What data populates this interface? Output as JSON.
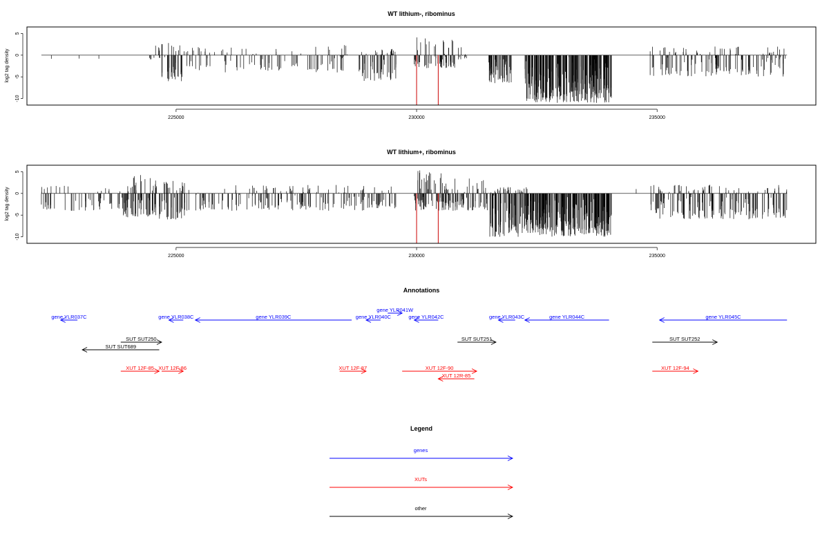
{
  "chart_data": [
    {
      "type": "bar",
      "title": "WT lithium-, ribominus",
      "ylabel": "log2 tag density",
      "xlim": [
        221900,
        238300
      ],
      "ylim": [
        -11.5,
        6.5
      ],
      "xticks": [
        225000,
        230000,
        235000
      ],
      "xtick_labels": [
        "225000",
        "230000",
        "235000"
      ],
      "yticks": [
        5,
        0,
        -5,
        -10
      ],
      "ytick_labels": [
        "5",
        "0",
        "-5",
        "-10"
      ],
      "segments": [
        {
          "from": 222200,
          "to": 223400,
          "density": 0.03,
          "min": -1,
          "max": 2.5
        },
        {
          "from": 224400,
          "to": 224700,
          "density": 0.5,
          "min": -1,
          "max": 2.8
        },
        {
          "from": 224700,
          "to": 225200,
          "density": 1.0,
          "min": -6,
          "max": 3
        },
        {
          "from": 225200,
          "to": 228500,
          "density": 0.4,
          "min": -4,
          "max": 2
        },
        {
          "from": 228400,
          "to": 228600,
          "density": 0.5,
          "min": -1,
          "max": 3
        },
        {
          "from": 228800,
          "to": 229600,
          "density": 1.0,
          "min": -6,
          "max": 1.5
        },
        {
          "from": 229950,
          "to": 230800,
          "density": 1.0,
          "min": -3,
          "max": 4.5
        },
        {
          "from": 230800,
          "to": 231200,
          "density": 0.4,
          "min": -1,
          "max": 2
        },
        {
          "from": 231500,
          "to": 232000,
          "density": 1.5,
          "min": -6.5,
          "max": 0.5
        },
        {
          "from": 232250,
          "to": 234050,
          "density": 2.0,
          "min": -11,
          "max": 0.2
        },
        {
          "from": 234850,
          "to": 237700,
          "density": 0.7,
          "min": -5,
          "max": 2
        }
      ],
      "highlight_positions": [
        230000,
        230450
      ],
      "highlight_value": -11.5,
      "highlight_color": "#cc0000"
    },
    {
      "type": "bar",
      "title": "WT lithium+, ribominus",
      "ylabel": "log2 tag density",
      "xlim": [
        221900,
        238300
      ],
      "ylim": [
        -11.5,
        6.5
      ],
      "xticks": [
        225000,
        230000,
        235000
      ],
      "xtick_labels": [
        "225000",
        "230000",
        "235000"
      ],
      "yticks": [
        5,
        0,
        -5,
        -10
      ],
      "ytick_labels": [
        "5",
        "0",
        "-5",
        "-10"
      ],
      "segments": [
        {
          "from": 222200,
          "to": 223900,
          "density": 0.5,
          "min": -4,
          "max": 2
        },
        {
          "from": 223900,
          "to": 224600,
          "density": 1.5,
          "min": -5.5,
          "max": 4.5
        },
        {
          "from": 224600,
          "to": 225200,
          "density": 1.2,
          "min": -6,
          "max": 3
        },
        {
          "from": 225200,
          "to": 229000,
          "density": 0.6,
          "min": -4,
          "max": 2
        },
        {
          "from": 229000,
          "to": 229600,
          "density": 0.7,
          "min": -3.5,
          "max": 2
        },
        {
          "from": 229950,
          "to": 230700,
          "density": 1.5,
          "min": -4,
          "max": 5.5
        },
        {
          "from": 230700,
          "to": 231500,
          "density": 1.0,
          "min": -4,
          "max": 3.5
        },
        {
          "from": 231500,
          "to": 232300,
          "density": 1.8,
          "min": -10,
          "max": 1.5
        },
        {
          "from": 232300,
          "to": 234050,
          "density": 2.0,
          "min": -10,
          "max": 0.5
        },
        {
          "from": 234200,
          "to": 234800,
          "density": 0.05,
          "min": 0,
          "max": 1.5
        },
        {
          "from": 234850,
          "to": 237700,
          "density": 0.9,
          "min": -6,
          "max": 2
        }
      ],
      "highlight_positions": [
        230000,
        230450
      ],
      "highlight_value": -11.5,
      "highlight_color": "#cc0000"
    }
  ],
  "annotations": {
    "title": "Annotations",
    "features": [
      {
        "label": "gene YLR037C",
        "type": "gene",
        "strand": "-",
        "start": 222600,
        "end": 222950,
        "row": 0
      },
      {
        "label": "gene YLR038C",
        "type": "gene",
        "strand": "-",
        "start": 224850,
        "end": 225150,
        "row": 0
      },
      {
        "label": "gene YLR039C",
        "type": "gene",
        "strand": "-",
        "start": 225400,
        "end": 228650,
        "row": 0
      },
      {
        "label": "gene YLR041W",
        "type": "gene",
        "strand": "+",
        "start": 229400,
        "end": 229700,
        "row": -1
      },
      {
        "label": "gene YLR040C",
        "type": "gene",
        "strand": "-",
        "start": 228950,
        "end": 229250,
        "row": 0
      },
      {
        "label": "gene YLR042C",
        "type": "gene",
        "strand": "-",
        "start": 229950,
        "end": 230450,
        "row": 0
      },
      {
        "label": "gene YLR043C",
        "type": "gene",
        "strand": "-",
        "start": 231700,
        "end": 232050,
        "row": 0
      },
      {
        "label": "gene YLR044C",
        "type": "gene",
        "strand": "-",
        "start": 232250,
        "end": 234000,
        "row": 0
      },
      {
        "label": "gene YLR045C",
        "type": "gene",
        "strand": "-",
        "start": 235050,
        "end": 237700,
        "row": 0
      },
      {
        "label": "SUT SUT250",
        "type": "other",
        "strand": "+",
        "start": 223850,
        "end": 224700,
        "row": 1
      },
      {
        "label": "SUT SUT689",
        "type": "other",
        "strand": "-",
        "start": 223050,
        "end": 224650,
        "row": 2
      },
      {
        "label": "SUT SUT251",
        "type": "other",
        "strand": "+",
        "start": 230850,
        "end": 231650,
        "row": 1
      },
      {
        "label": "SUT SUT252",
        "type": "other",
        "strand": "+",
        "start": 234900,
        "end": 236250,
        "row": 1
      },
      {
        "label": "XUT 12F-85",
        "type": "xut",
        "strand": "+",
        "start": 223850,
        "end": 224650,
        "row": 3
      },
      {
        "label": "XUT 12F-86",
        "type": "xut",
        "strand": "+",
        "start": 224700,
        "end": 225150,
        "row": 3
      },
      {
        "label": "XUT 12F-87",
        "type": "xut",
        "strand": "+",
        "start": 228400,
        "end": 228950,
        "row": 3
      },
      {
        "label": "XUT 12F-90",
        "type": "xut",
        "strand": "+",
        "start": 229700,
        "end": 231250,
        "row": 3
      },
      {
        "label": "XUT 12R-85",
        "type": "xut",
        "strand": "-",
        "start": 230450,
        "end": 231200,
        "row": 4
      },
      {
        "label": "XUT 12F-94",
        "type": "xut",
        "strand": "+",
        "start": 234900,
        "end": 235850,
        "row": 3
      }
    ]
  },
  "legend": {
    "title": "Legend",
    "items": [
      {
        "label": "genes",
        "color": "#0000ff"
      },
      {
        "label": "XUTs",
        "color": "#ff0000"
      },
      {
        "label": "other",
        "color": "#000000"
      }
    ]
  },
  "colors": {
    "gene": "#0000ff",
    "xut": "#ff0000",
    "other": "#000000"
  }
}
